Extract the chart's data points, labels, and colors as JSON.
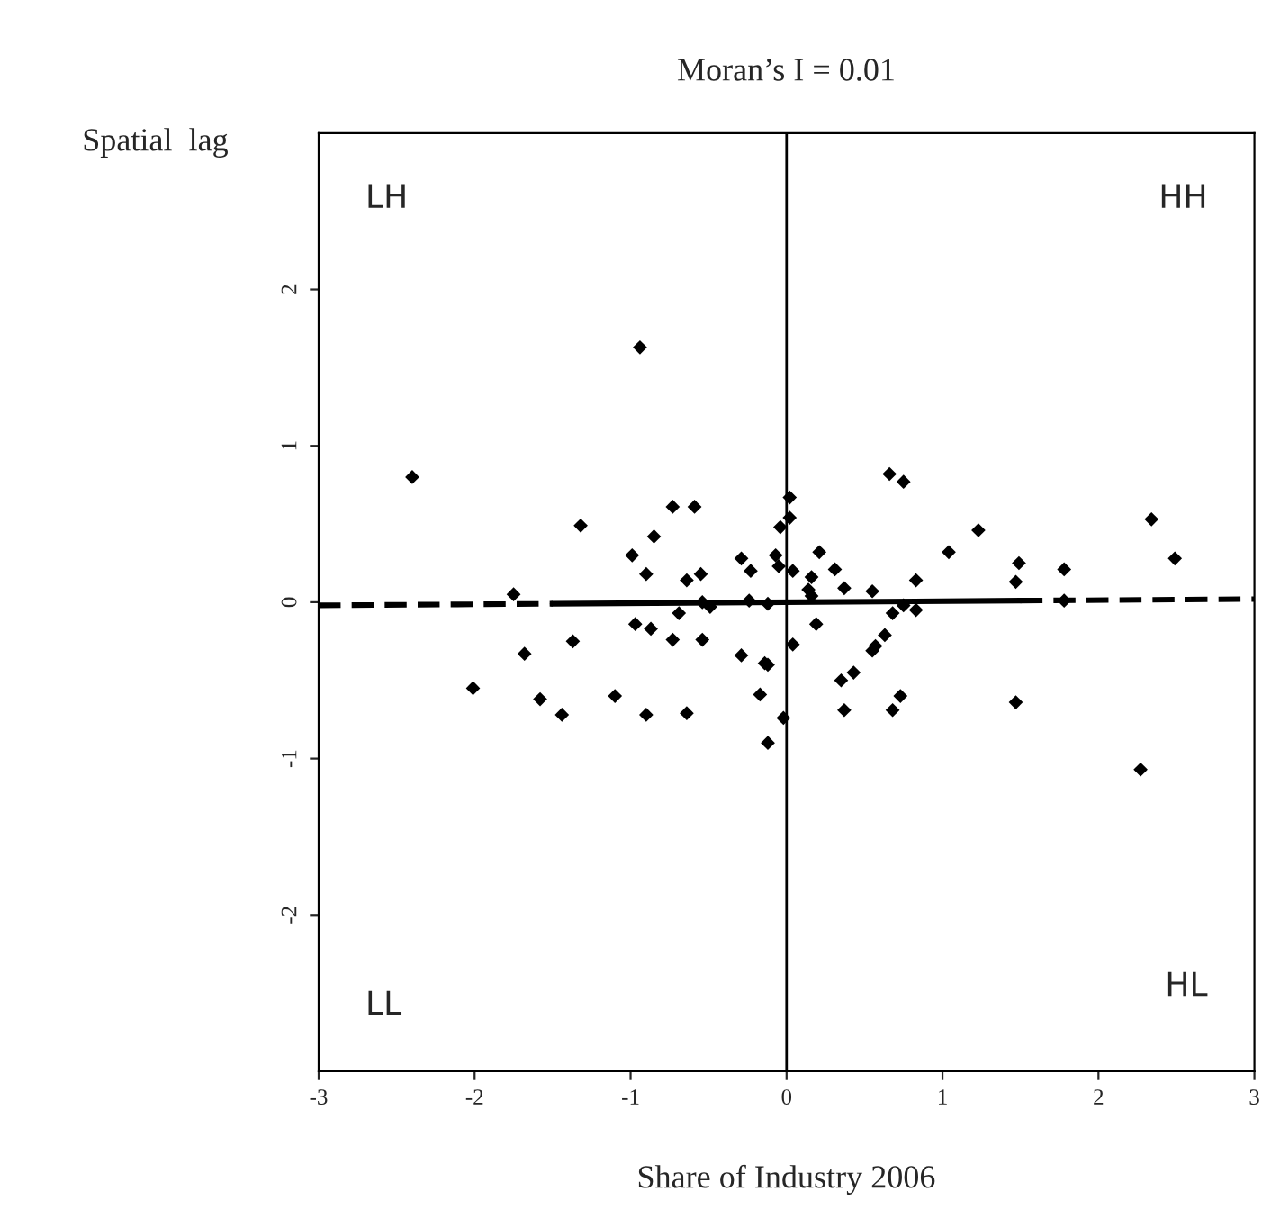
{
  "chart_data": {
    "type": "scatter",
    "title": "Moran’s I = 0.01",
    "xlabel": "Share of Industry 2006",
    "ylabel": "Spatial  lag",
    "annotations": [
      "LH",
      "HH",
      "LL",
      "HL"
    ],
    "xlim": [
      -3,
      3
    ],
    "ylim": [
      -3,
      3
    ],
    "xticks": [
      -3,
      -2,
      -1,
      0,
      1,
      2,
      3
    ],
    "yticks": [
      -2,
      -1,
      0,
      1,
      2
    ],
    "grid": false,
    "legend": false,
    "marker": "diamond",
    "ref_lines": [
      {
        "axis": "x",
        "value": 0,
        "color": "#000000",
        "line_style": "solid"
      }
    ],
    "series": [
      {
        "color": "#000000",
        "x": [
          -2.4,
          -0.94,
          -1.75,
          -1.32,
          -0.99,
          -0.9,
          -0.85,
          -0.73,
          -0.59,
          -0.64,
          -0.55,
          -0.54,
          -0.49,
          -0.29,
          -0.23,
          -0.24,
          -0.12,
          -0.07,
          -0.05,
          -0.04,
          0.02,
          0.02,
          0.04,
          0.16,
          0.14,
          0.16,
          0.21,
          0.31,
          0.37,
          0.55,
          0.66,
          0.75,
          0.83,
          0.68,
          0.75,
          0.83,
          1.04,
          1.23,
          1.49,
          1.47,
          1.78,
          1.78,
          2.34,
          2.49,
          -0.69,
          -0.97,
          -0.87,
          -0.73,
          -0.54,
          -1.37,
          -1.68,
          -2.01,
          -1.58,
          -1.44,
          -1.1,
          -0.9,
          -0.64,
          -0.29,
          -0.14,
          -0.12,
          -0.17,
          -0.02,
          -0.12,
          0.04,
          0.19,
          0.35,
          0.43,
          0.37,
          0.55,
          0.57,
          0.63,
          0.73,
          0.68,
          1.47,
          2.27
        ],
        "values": [
          0.8,
          1.63,
          0.05,
          0.49,
          0.3,
          0.18,
          0.42,
          0.61,
          0.61,
          0.14,
          0.18,
          0.0,
          -0.03,
          0.28,
          0.2,
          0.01,
          -0.01,
          0.3,
          0.23,
          0.48,
          0.54,
          0.67,
          0.2,
          0.16,
          0.08,
          0.04,
          0.32,
          0.21,
          0.09,
          0.07,
          0.82,
          0.77,
          0.14,
          -0.07,
          -0.02,
          -0.05,
          0.32,
          0.46,
          0.25,
          0.13,
          0.21,
          0.01,
          0.53,
          0.28,
          -0.07,
          -0.14,
          -0.17,
          -0.24,
          -0.24,
          -0.25,
          -0.33,
          -0.55,
          -0.62,
          -0.72,
          -0.6,
          -0.72,
          -0.71,
          -0.34,
          -0.39,
          -0.4,
          -0.59,
          -0.74,
          -0.9,
          -0.27,
          -0.14,
          -0.5,
          -0.45,
          -0.69,
          -0.31,
          -0.28,
          -0.21,
          -0.6,
          -0.69,
          -0.64,
          -1.07
        ]
      },
      {
        "type": "line",
        "color": "#000000",
        "line_style": "dashed",
        "marker": "none",
        "x": [
          -3,
          -1.5
        ],
        "values": [
          -0.02,
          -0.01
        ]
      },
      {
        "type": "line",
        "color": "#000000",
        "line_style": "solid",
        "marker": "none",
        "x": [
          -1.5,
          1.5
        ],
        "values": [
          -0.01,
          0.01
        ]
      },
      {
        "type": "line",
        "color": "#000000",
        "line_style": "dashed",
        "marker": "none",
        "x": [
          1.5,
          3
        ],
        "values": [
          0.01,
          0.02
        ]
      }
    ]
  }
}
